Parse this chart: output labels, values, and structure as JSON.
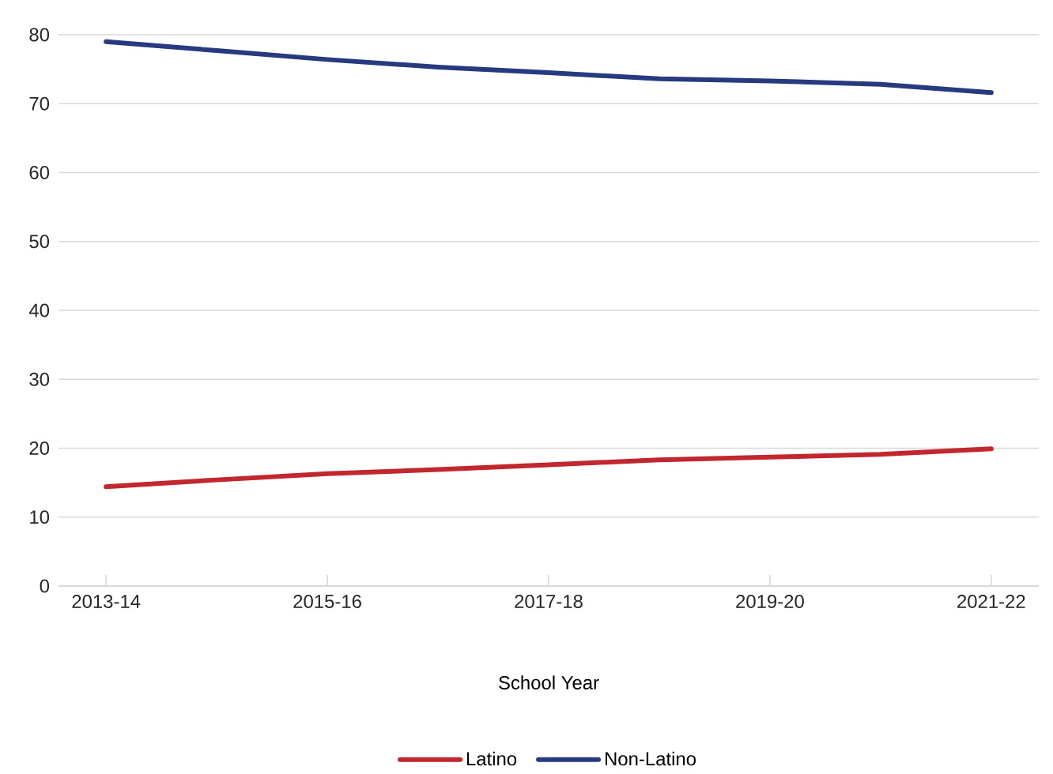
{
  "chart_data": {
    "type": "line",
    "xlabel": "School Year",
    "categories": [
      "2013-14",
      null,
      "2015-16",
      null,
      "2017-18",
      null,
      "2019-20",
      null,
      "2021-22"
    ],
    "ylim": [
      0,
      80
    ],
    "yticks": [
      0,
      10,
      20,
      30,
      40,
      50,
      60,
      70,
      80
    ],
    "grid": "y",
    "legend": "bottom",
    "marker": "none",
    "line_style": "solid",
    "series": [
      {
        "name": "Latino",
        "color": "#c1272d",
        "values": [
          14.4,
          15.4,
          16.3,
          16.9,
          17.6,
          18.3,
          18.7,
          19.1,
          19.9
        ]
      },
      {
        "name": "Non-Latino",
        "color": "#253a7f",
        "values": [
          79.0,
          77.7,
          76.4,
          75.3,
          74.5,
          73.6,
          73.3,
          72.8,
          71.6
        ]
      }
    ]
  }
}
